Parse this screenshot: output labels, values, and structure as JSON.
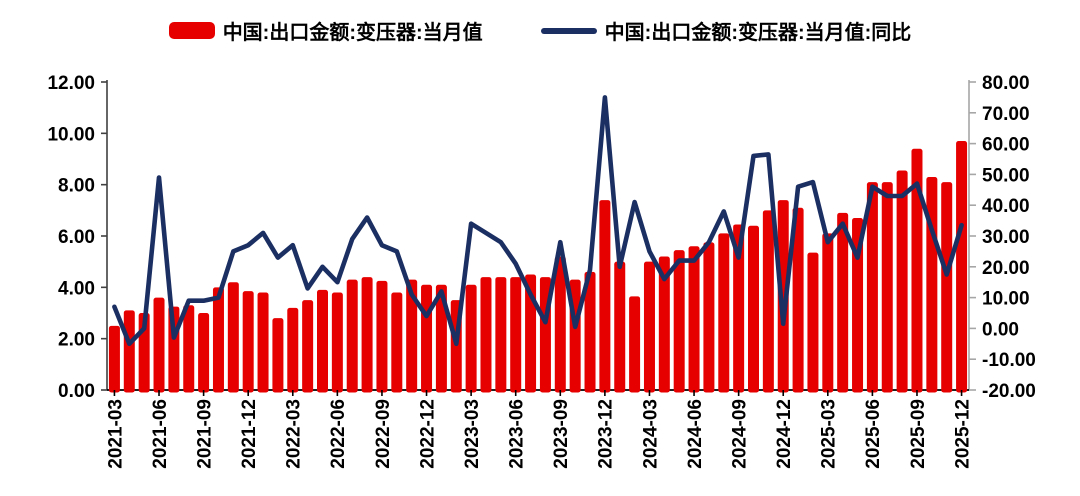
{
  "legend": {
    "bar_label": "中国:出口金额:变压器:当月值",
    "line_label": "中国:出口金额:变压器:当月值:同比"
  },
  "colors": {
    "bar": "#e60000",
    "line": "#1b2f63",
    "axis_left": "#404040",
    "axis_bottom": "#000000",
    "axis_right": "#a6a6a6",
    "text": "#000000"
  },
  "chart_data": {
    "type": "bar+line combo",
    "title": "",
    "x": [
      "2021-03",
      "2021-04",
      "2021-05",
      "2021-06",
      "2021-07",
      "2021-08",
      "2021-09",
      "2021-10",
      "2021-11",
      "2021-12",
      "2022-01",
      "2022-02",
      "2022-03",
      "2022-04",
      "2022-05",
      "2022-06",
      "2022-07",
      "2022-08",
      "2022-09",
      "2022-10",
      "2022-11",
      "2022-12",
      "2023-01",
      "2023-02",
      "2023-03",
      "2023-04",
      "2023-05",
      "2023-06",
      "2023-07",
      "2023-08",
      "2023-09",
      "2023-10",
      "2023-11",
      "2023-12",
      "2024-01",
      "2024-02",
      "2024-03",
      "2024-04",
      "2024-05",
      "2024-06",
      "2024-07",
      "2024-08",
      "2024-09",
      "2024-10",
      "2024-11",
      "2024-12",
      "2025-01",
      "2025-02",
      "2025-03",
      "2025-04",
      "2025-05",
      "2025-06",
      "2025-07",
      "2025-08",
      "2025-09",
      "2025-10",
      "2025-11",
      "2025-12"
    ],
    "x_tick_labels": [
      "2021-03",
      "2021-06",
      "2021-09",
      "2021-12",
      "2022-03",
      "2022-06",
      "2022-09",
      "2022-12",
      "2023-03",
      "2023-06",
      "2023-09",
      "2023-12",
      "2024-03",
      "2024-06",
      "2024-09",
      "2024-12",
      "2025-03",
      "2025-06",
      "2025-09",
      "2025-12"
    ],
    "x_tick_every": 3,
    "series": [
      {
        "name": "中国:出口金额:变压器:当月值",
        "type": "bar",
        "axis": "left",
        "color": "#e60000",
        "values": [
          2.5,
          3.1,
          3.0,
          3.6,
          3.25,
          3.3,
          3.0,
          4.0,
          4.2,
          3.85,
          3.8,
          2.8,
          3.2,
          3.5,
          3.9,
          3.8,
          4.3,
          4.4,
          4.25,
          3.8,
          4.3,
          4.1,
          4.1,
          3.5,
          4.1,
          4.4,
          4.4,
          4.4,
          4.5,
          4.4,
          5.2,
          4.3,
          4.6,
          7.4,
          5.0,
          3.65,
          5.0,
          5.2,
          5.45,
          5.6,
          5.75,
          6.1,
          6.45,
          6.4,
          7.0,
          7.4,
          7.1,
          5.35,
          6.1,
          6.9,
          6.7,
          8.1,
          8.1,
          8.55,
          9.4,
          8.3,
          8.1,
          9.7
        ]
      },
      {
        "name": "中国:出口金额:变压器:当月值:同比",
        "type": "line",
        "axis": "right",
        "color": "#1b2f63",
        "values": [
          7,
          -5,
          0,
          49,
          -3,
          9,
          9,
          10,
          25,
          27,
          31,
          23,
          27,
          13,
          20,
          15,
          29,
          36,
          27,
          25,
          11,
          4,
          12,
          -5,
          34,
          31,
          28,
          21,
          11,
          2,
          28,
          0.5,
          19,
          75,
          20,
          41,
          25,
          16,
          22,
          22,
          28,
          38,
          23,
          56,
          56.5,
          1.5,
          46,
          47.5,
          28,
          34,
          23,
          46,
          43,
          43,
          47,
          32,
          17.5,
          33.5
        ]
      }
    ],
    "left_axis": {
      "min": 0,
      "max": 12,
      "step": 2,
      "tick_labels": [
        "0.00",
        "2.00",
        "4.00",
        "6.00",
        "8.00",
        "10.00",
        "12.00"
      ]
    },
    "right_axis": {
      "min": -20,
      "max": 80,
      "step": 10,
      "tick_labels": [
        "-20.00",
        "-10.00",
        "0.00",
        "10.00",
        "20.00",
        "30.00",
        "40.00",
        "50.00",
        "60.00",
        "70.00",
        "80.00"
      ]
    },
    "grid": false,
    "legend_position": "top-center"
  }
}
